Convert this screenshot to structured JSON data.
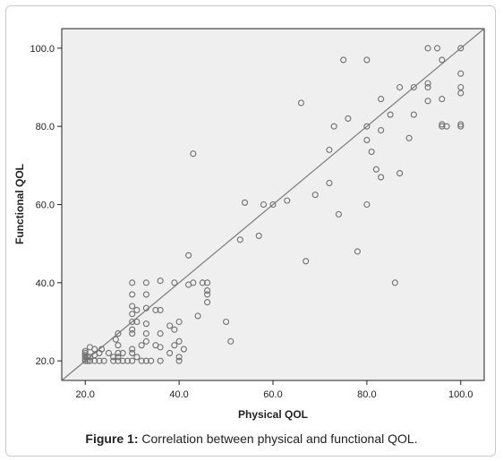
{
  "caption": {
    "label": "Figure 1:",
    "text": " Correlation between physical and functional QOL."
  },
  "chart_data": {
    "type": "scatter",
    "title": "",
    "xlabel": "Physical QOL",
    "ylabel": "Functional QOL",
    "xlim": [
      15,
      105
    ],
    "ylim": [
      15,
      105
    ],
    "xticks": [
      "20.0",
      "40.0",
      "60.0",
      "80.0",
      "100.0"
    ],
    "yticks": [
      "20.0",
      "40.0",
      "60.0",
      "80.0",
      "100.0"
    ],
    "grid": false,
    "legend": "none",
    "reference_line": {
      "type": "y=x"
    },
    "colors": {
      "plot_bg": "#efefef",
      "marker": "#6f6f6f",
      "line": "#7a7a7a",
      "axis": "#222222"
    },
    "points": [
      [
        20,
        20
      ],
      [
        20,
        20.5
      ],
      [
        20,
        21
      ],
      [
        20,
        21.5
      ],
      [
        20,
        22
      ],
      [
        20,
        22.5
      ],
      [
        20.5,
        20
      ],
      [
        20.5,
        21
      ],
      [
        21,
        20
      ],
      [
        21,
        21
      ],
      [
        21,
        23.5
      ],
      [
        22,
        20
      ],
      [
        22,
        21.5
      ],
      [
        22,
        23
      ],
      [
        23,
        20
      ],
      [
        23,
        22
      ],
      [
        23.5,
        23
      ],
      [
        24,
        20
      ],
      [
        25,
        22
      ],
      [
        26,
        20
      ],
      [
        26,
        21
      ],
      [
        27,
        20
      ],
      [
        27,
        21
      ],
      [
        27,
        22
      ],
      [
        27,
        24
      ],
      [
        26.5,
        25.5
      ],
      [
        27,
        27
      ],
      [
        28,
        20
      ],
      [
        28,
        22
      ],
      [
        29,
        20
      ],
      [
        30,
        20
      ],
      [
        30,
        22
      ],
      [
        30,
        23
      ],
      [
        30,
        27
      ],
      [
        30,
        28
      ],
      [
        30,
        30
      ],
      [
        30,
        32
      ],
      [
        30,
        34
      ],
      [
        30,
        37
      ],
      [
        30,
        40
      ],
      [
        31,
        21
      ],
      [
        31,
        30
      ],
      [
        31,
        33
      ],
      [
        32,
        20
      ],
      [
        32,
        24
      ],
      [
        33,
        20
      ],
      [
        33,
        25
      ],
      [
        33,
        27
      ],
      [
        33,
        29.5
      ],
      [
        33,
        33.5
      ],
      [
        33,
        37
      ],
      [
        33,
        40
      ],
      [
        34,
        20
      ],
      [
        35,
        24
      ],
      [
        35,
        33
      ],
      [
        36,
        20
      ],
      [
        36,
        23.5
      ],
      [
        36,
        27
      ],
      [
        36,
        33
      ],
      [
        36,
        40.5
      ],
      [
        38,
        22
      ],
      [
        38,
        29
      ],
      [
        39,
        24
      ],
      [
        39,
        28
      ],
      [
        39,
        40
      ],
      [
        40,
        20
      ],
      [
        40,
        21
      ],
      [
        40,
        25
      ],
      [
        40,
        30
      ],
      [
        41,
        23
      ],
      [
        42,
        39.5
      ],
      [
        42,
        47
      ],
      [
        43,
        40
      ],
      [
        43,
        73
      ],
      [
        44,
        31.5
      ],
      [
        45,
        40
      ],
      [
        46,
        35
      ],
      [
        46,
        37
      ],
      [
        46,
        38
      ],
      [
        46,
        40
      ],
      [
        50,
        30
      ],
      [
        51,
        25
      ],
      [
        54,
        60.5
      ],
      [
        53,
        51
      ],
      [
        57,
        52
      ],
      [
        58,
        60
      ],
      [
        60,
        60
      ],
      [
        63,
        61
      ],
      [
        66,
        86
      ],
      [
        67,
        45.5
      ],
      [
        69,
        62.5
      ],
      [
        72,
        65.5
      ],
      [
        72,
        74
      ],
      [
        73,
        80
      ],
      [
        74,
        57.5
      ],
      [
        75,
        97
      ],
      [
        76,
        82
      ],
      [
        78,
        48
      ],
      [
        80,
        60
      ],
      [
        80,
        76.5
      ],
      [
        80,
        80
      ],
      [
        80,
        97
      ],
      [
        81,
        73.5
      ],
      [
        82,
        69
      ],
      [
        83,
        67
      ],
      [
        83,
        79
      ],
      [
        83,
        87
      ],
      [
        85,
        83
      ],
      [
        86,
        40
      ],
      [
        87,
        90
      ],
      [
        87,
        68
      ],
      [
        89,
        77
      ],
      [
        90,
        83
      ],
      [
        90,
        90
      ],
      [
        93,
        86.5
      ],
      [
        93,
        90
      ],
      [
        93,
        91
      ],
      [
        93,
        100
      ],
      [
        95,
        100
      ],
      [
        96,
        87
      ],
      [
        96,
        97
      ],
      [
        97,
        80
      ],
      [
        100,
        80
      ],
      [
        100,
        88.5
      ],
      [
        100,
        90
      ],
      [
        100,
        93.5
      ],
      [
        100,
        100
      ],
      [
        96,
        80
      ],
      [
        100,
        80.5
      ],
      [
        96,
        80.5
      ]
    ]
  }
}
